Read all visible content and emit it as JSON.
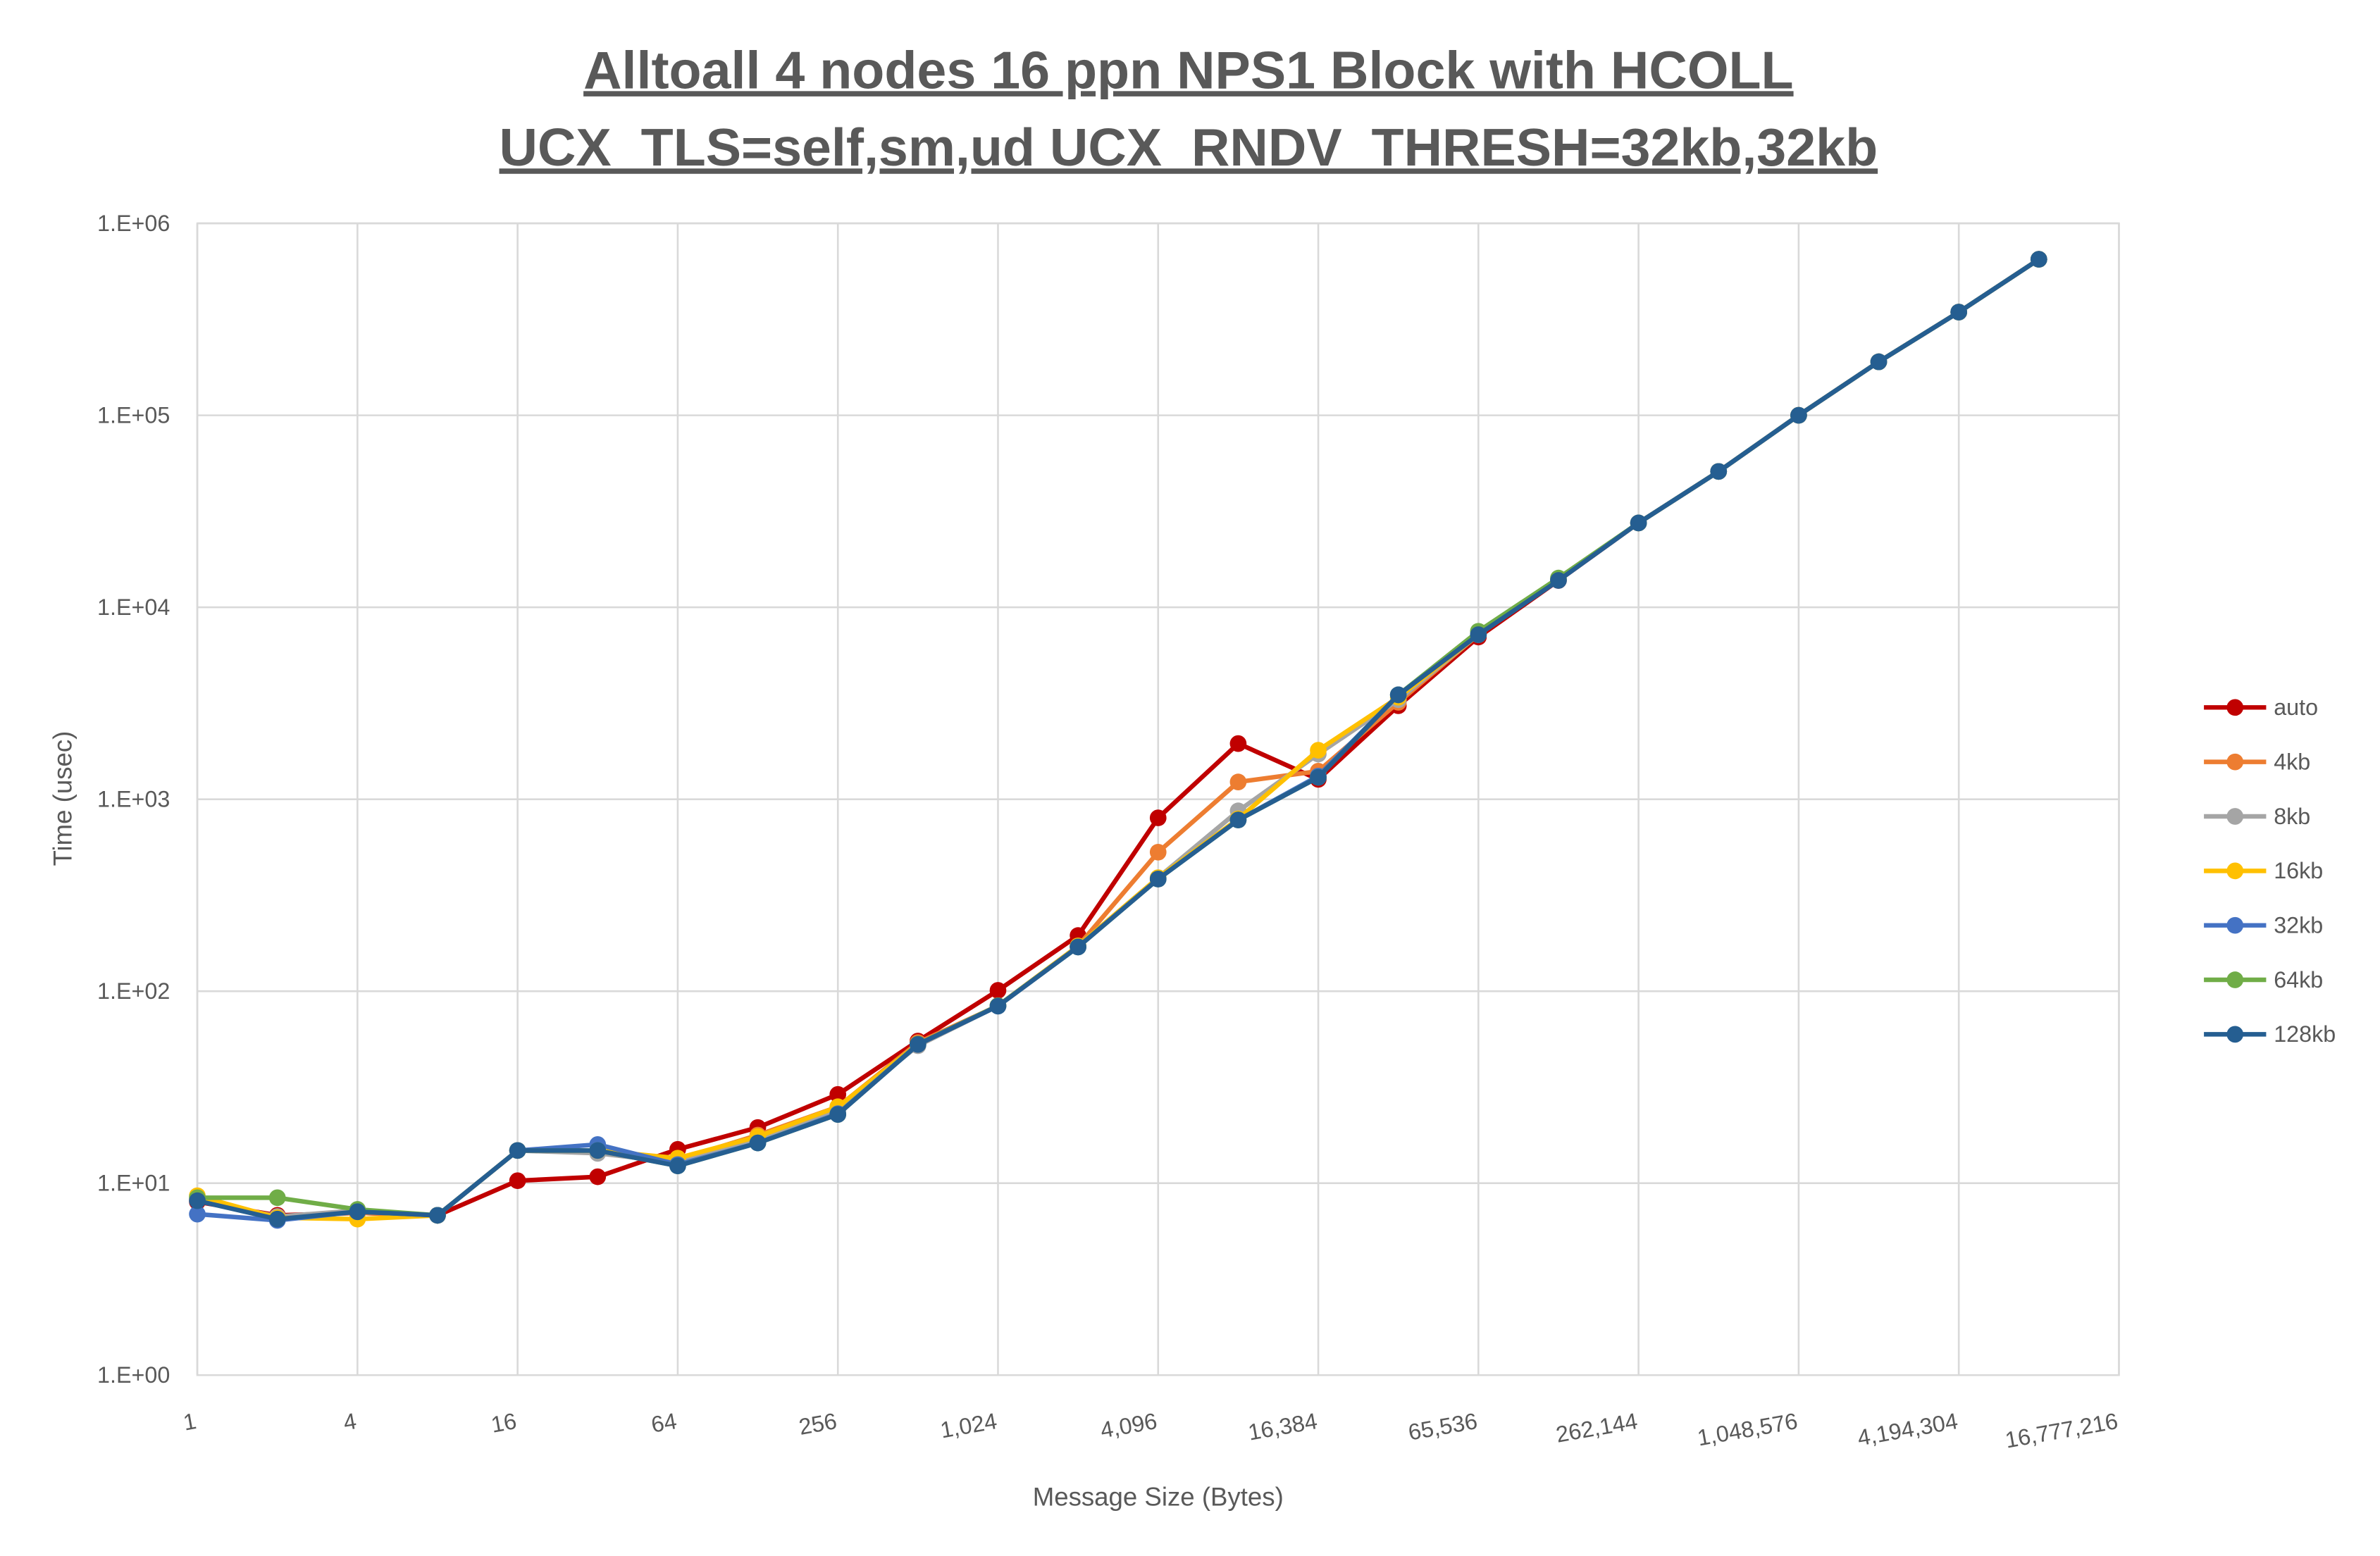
{
  "chart_data": {
    "type": "line",
    "title": [
      "Alltoall 4 nodes 16 ppn NPS1 Block with HCOLL",
      "UCX_TLS=self,sm,ud UCX_RNDV_THRESH=32kb,32kb"
    ],
    "xlabel": "Message Size (Bytes)",
    "ylabel": "Time (usec)",
    "x_scale": "log2",
    "y_scale": "log10",
    "xlim": [
      1,
      16777216
    ],
    "ylim": [
      1,
      1000000
    ],
    "grid": true,
    "legend_position": "right",
    "x_tick_labels": [
      "1",
      "4",
      "16",
      "64",
      "256",
      "1,024",
      "4,096",
      "16,384",
      "65,536",
      "262,144",
      "1,048,576",
      "4,194,304",
      "16,777,216"
    ],
    "x_tick_values": [
      1,
      4,
      16,
      64,
      256,
      1024,
      4096,
      16384,
      65536,
      262144,
      1048576,
      4194304,
      16777216
    ],
    "y_tick_labels": [
      "1.E+00",
      "1.E+01",
      "1.E+02",
      "1.E+03",
      "1.E+04",
      "1.E+05",
      "1.E+06"
    ],
    "y_tick_values": [
      1,
      10,
      100,
      1000,
      10000,
      100000,
      1000000
    ],
    "x": [
      1,
      2,
      4,
      8,
      16,
      32,
      64,
      128,
      256,
      512,
      1024,
      2048,
      4096,
      8192,
      16384,
      32768,
      65536,
      131072,
      262144,
      524288,
      1048576,
      2097152,
      4194304,
      8388608
    ],
    "series": [
      {
        "name": "auto",
        "color": "#c00000",
        "values": [
          8.0,
          6.8,
          7.0,
          6.8,
          10.3,
          10.8,
          15.0,
          19.5,
          29,
          55,
          101,
          195,
          800,
          1950,
          1270,
          3070,
          7000,
          13800,
          27500,
          51000,
          100000,
          190000,
          345000,
          650000
        ]
      },
      {
        "name": "4kb",
        "color": "#ed7d31",
        "values": [
          8.2,
          6.7,
          7.0,
          6.8,
          14.8,
          14.8,
          13.2,
          17.8,
          25,
          54,
          84,
          172,
          530,
          1230,
          1400,
          3200,
          7200,
          13900,
          27500,
          51000,
          100000,
          190000,
          345000,
          650000
        ]
      },
      {
        "name": "8kb",
        "color": "#a5a5a5",
        "values": [
          8.2,
          6.7,
          7.2,
          6.8,
          14.8,
          14.3,
          12.8,
          16.8,
          24,
          52,
          84,
          172,
          390,
          870,
          1720,
          3300,
          7200,
          13900,
          27500,
          51000,
          100000,
          190000,
          345000,
          650000
        ]
      },
      {
        "name": "16kb",
        "color": "#ffc000",
        "values": [
          8.6,
          6.6,
          6.5,
          6.8,
          14.8,
          14.8,
          13.5,
          17.5,
          25,
          53,
          84,
          172,
          390,
          790,
          1800,
          3400,
          7200,
          13900,
          27500,
          51000,
          100000,
          190000,
          345000,
          650000
        ]
      },
      {
        "name": "32kb",
        "color": "#4472c4",
        "values": [
          6.9,
          6.4,
          7.1,
          6.8,
          14.8,
          15.9,
          12.5,
          16.2,
          23,
          53,
          84,
          170,
          384,
          780,
          1320,
          3500,
          7200,
          13900,
          27500,
          51000,
          100000,
          190000,
          345000,
          650000
        ]
      },
      {
        "name": "64kb",
        "color": "#70ad47",
        "values": [
          8.4,
          8.4,
          7.3,
          6.8,
          14.8,
          14.8,
          12.3,
          16.2,
          22.8,
          53,
          84,
          170,
          384,
          780,
          1300,
          3500,
          7500,
          14200,
          27500,
          51000,
          100000,
          190000,
          345000,
          650000
        ]
      },
      {
        "name": "128kb",
        "color": "#255e91",
        "values": [
          8.1,
          6.5,
          7.1,
          6.8,
          14.8,
          14.8,
          12.3,
          16.2,
          22.8,
          52.8,
          83.6,
          170,
          384,
          780,
          1300,
          3500,
          7200,
          13800,
          27500,
          51000,
          100000,
          190000,
          345000,
          650000
        ]
      }
    ]
  }
}
